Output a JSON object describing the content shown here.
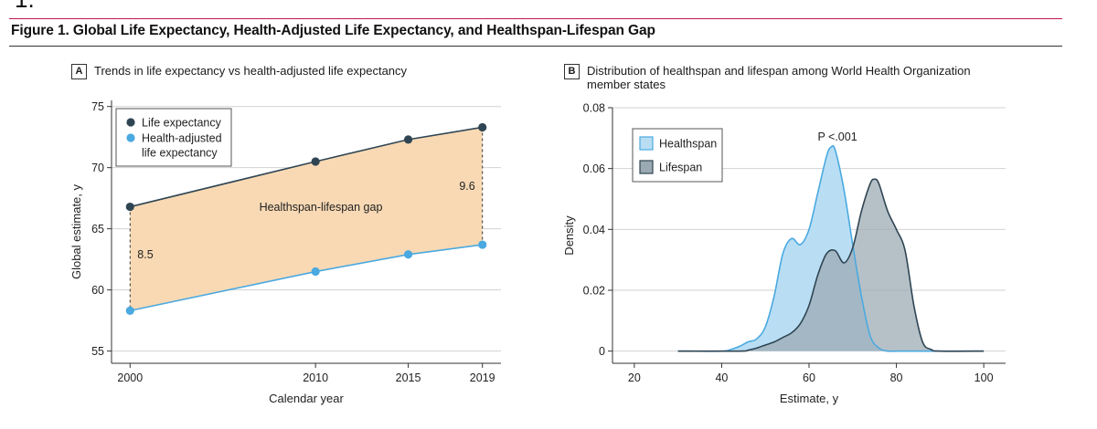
{
  "corner_glyph": "1.",
  "figure_title": "Figure 1. Global Life Expectancy, Health-Adjusted Life Expectancy, and Healthspan-Lifespan Gap",
  "colors": {
    "accent_rule": "#c0164a",
    "life_expectancy": "#2f4553",
    "health_adjusted": "#4aa9e0",
    "gap_fill": "#f8d9b4",
    "healthspan_fill": "#b9def4",
    "lifespan_fill": "#9aa9b2"
  },
  "chart_data": [
    {
      "type": "line",
      "panel_letter": "A",
      "title": "Trends in life expectancy vs health-adjusted life expectancy",
      "xlabel": "Calendar year",
      "ylabel": "Global estimate, y",
      "xlim": [
        1999,
        2020
      ],
      "ylim": [
        54,
        75.5
      ],
      "x_ticks": [
        2000,
        2010,
        2015,
        2019
      ],
      "y_ticks": [
        55,
        60,
        65,
        70,
        75
      ],
      "grid": "horizontal",
      "legend_position": "top-left",
      "series": [
        {
          "name": "Life expectancy",
          "x": [
            2000,
            2010,
            2015,
            2019
          ],
          "values": [
            66.8,
            70.5,
            72.3,
            73.3
          ]
        },
        {
          "name": "Health-adjusted life expectancy",
          "legend_lines": [
            "Health-adjusted",
            "life expectancy"
          ],
          "x": [
            2000,
            2010,
            2015,
            2019
          ],
          "values": [
            58.3,
            61.5,
            62.9,
            63.7
          ]
        }
      ],
      "annotations": {
        "gap_label": "Healthspan-lifespan gap",
        "gap_2000": "8.5",
        "gap_2019": "9.6"
      }
    },
    {
      "type": "area",
      "panel_letter": "B",
      "title_lines": [
        "Distribution of healthspan and lifespan among World Health Organization",
        "member states"
      ],
      "xlabel": "Estimate, y",
      "ylabel": "Density",
      "xlim": [
        15,
        105
      ],
      "ylim": [
        -0.004,
        0.08
      ],
      "x_ticks": [
        20,
        40,
        60,
        80,
        100
      ],
      "y_ticks": [
        0,
        0.02,
        0.04,
        0.06,
        0.08
      ],
      "y_tick_labels": [
        "0",
        "0.02",
        "0.04",
        "0.06",
        "0.08"
      ],
      "grid": "horizontal",
      "legend_position": "top-left",
      "annotation": "P <.001",
      "series": [
        {
          "name": "Healthspan",
          "x": [
            30,
            40,
            42,
            44,
            46,
            48,
            50,
            52,
            54,
            56,
            58,
            60,
            62,
            64,
            65,
            66,
            68,
            70,
            72,
            74,
            76,
            78,
            80,
            85,
            90,
            100
          ],
          "values": [
            0,
            0,
            0.0005,
            0.0015,
            0.003,
            0.004,
            0.008,
            0.018,
            0.032,
            0.037,
            0.035,
            0.04,
            0.052,
            0.064,
            0.067,
            0.066,
            0.053,
            0.035,
            0.018,
            0.005,
            0.001,
            0,
            0,
            0,
            0,
            0
          ]
        },
        {
          "name": "Lifespan",
          "x": [
            30,
            44,
            46,
            48,
            50,
            52,
            54,
            56,
            58,
            60,
            62,
            64,
            66,
            68,
            70,
            72,
            74,
            75,
            76,
            78,
            80,
            82,
            84,
            86,
            88,
            90,
            100
          ],
          "values": [
            0,
            0,
            0.0003,
            0.001,
            0.002,
            0.003,
            0.0045,
            0.006,
            0.009,
            0.015,
            0.025,
            0.032,
            0.033,
            0.029,
            0.034,
            0.046,
            0.055,
            0.0565,
            0.055,
            0.046,
            0.04,
            0.033,
            0.015,
            0.003,
            0.0005,
            0,
            0
          ]
        }
      ]
    }
  ]
}
